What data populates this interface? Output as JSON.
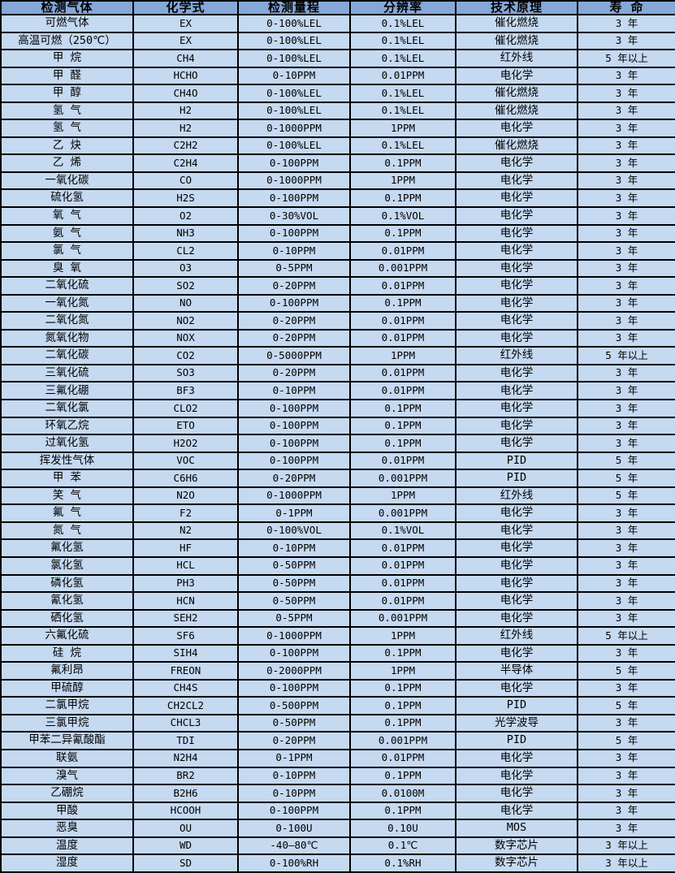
{
  "colors": {
    "header_bg": "#85a8d8",
    "row_bg": "#c5d9f1",
    "border": "#000000",
    "text": "#000000"
  },
  "table": {
    "columns": [
      "检测气体",
      "化学式",
      "检测量程",
      "分辨率",
      "技术原理",
      "寿 命"
    ],
    "rows": [
      [
        "可燃气体",
        "EX",
        "0-100%LEL",
        "0.1%LEL",
        "催化燃烧",
        "3 年"
      ],
      [
        "高温可燃（250℃）",
        "EX",
        "0-100%LEL",
        "0.1%LEL",
        "催化燃烧",
        "3 年"
      ],
      [
        "甲 烷",
        "CH4",
        "0-100%LEL",
        "0.1%LEL",
        "红外线",
        "5 年以上"
      ],
      [
        "甲 醛",
        "HCHO",
        "0-10PPM",
        "0.01PPM",
        "电化学",
        "3 年"
      ],
      [
        "甲 醇",
        "CH4O",
        "0-100%LEL",
        "0.1%LEL",
        "催化燃烧",
        "3 年"
      ],
      [
        "氢 气",
        "H2",
        "0-100%LEL",
        "0.1%LEL",
        "催化燃烧",
        "3 年"
      ],
      [
        "氢 气",
        "H2",
        "0-1000PPM",
        "1PPM",
        "电化学",
        "3 年"
      ],
      [
        "乙 炔",
        "C2H2",
        "0-100%LEL",
        "0.1%LEL",
        "催化燃烧",
        "3 年"
      ],
      [
        "乙 烯",
        "C2H4",
        "0-100PPM",
        "0.1PPM",
        "电化学",
        "3 年"
      ],
      [
        "一氧化碳",
        "CO",
        "0-1000PPM",
        "1PPM",
        "电化学",
        "3 年"
      ],
      [
        "硫化氢",
        "H2S",
        "0-100PPM",
        "0.1PPM",
        "电化学",
        "3 年"
      ],
      [
        "氧 气",
        "O2",
        "0-30%VOL",
        "0.1%VOL",
        "电化学",
        "3 年"
      ],
      [
        "氨 气",
        "NH3",
        "0-100PPM",
        "0.1PPM",
        "电化学",
        "3 年"
      ],
      [
        "氯 气",
        "CL2",
        "0-10PPM",
        "0.01PPM",
        "电化学",
        "3 年"
      ],
      [
        "臭 氧",
        "O3",
        "0-5PPM",
        "0.001PPM",
        "电化学",
        "3 年"
      ],
      [
        "二氧化硫",
        "SO2",
        "0-20PPM",
        "0.01PPM",
        "电化学",
        "3 年"
      ],
      [
        "一氧化氮",
        "NO",
        "0-100PPM",
        "0.1PPM",
        "电化学",
        "3 年"
      ],
      [
        "二氧化氮",
        "NO2",
        "0-20PPM",
        "0.01PPM",
        "电化学",
        "3 年"
      ],
      [
        "氮氧化物",
        "NOX",
        "0-20PPM",
        "0.01PPM",
        "电化学",
        "3 年"
      ],
      [
        "二氧化碳",
        "CO2",
        "0-5000PPM",
        "1PPM",
        "红外线",
        "5 年以上"
      ],
      [
        "三氧化硫",
        "SO3",
        "0-20PPM",
        "0.01PPM",
        "电化学",
        "3 年"
      ],
      [
        "三氟化硼",
        "BF3",
        "0-10PPM",
        "0.01PPM",
        "电化学",
        "3 年"
      ],
      [
        "二氧化氯",
        "CLO2",
        "0-100PPM",
        "0.1PPM",
        "电化学",
        "3 年"
      ],
      [
        "环氧乙烷",
        "ETO",
        "0-100PPM",
        "0.1PPM",
        "电化学",
        "3 年"
      ],
      [
        "过氧化氢",
        "H2O2",
        "0-100PPM",
        "0.1PPM",
        "电化学",
        "3 年"
      ],
      [
        "挥发性气体",
        "VOC",
        "0-100PPM",
        "0.01PPM",
        "PID",
        "5 年"
      ],
      [
        "甲 苯",
        "C6H6",
        "0-20PPM",
        "0.001PPM",
        "PID",
        "5 年"
      ],
      [
        "笑 气",
        "N2O",
        "0-1000PPM",
        "1PPM",
        "红外线",
        "5 年"
      ],
      [
        "氟 气",
        "F2",
        "0-1PPM",
        "0.001PPM",
        "电化学",
        "3 年"
      ],
      [
        "氮 气",
        "N2",
        "0-100%VOL",
        "0.1%VOL",
        "电化学",
        "3 年"
      ],
      [
        "氟化氢",
        "HF",
        "0-10PPM",
        "0.01PPM",
        "电化学",
        "3 年"
      ],
      [
        "氯化氢",
        "HCL",
        "0-50PPM",
        "0.01PPM",
        "电化学",
        "3 年"
      ],
      [
        "磷化氢",
        "PH3",
        "0-50PPM",
        "0.01PPM",
        "电化学",
        "3 年"
      ],
      [
        "氰化氢",
        "HCN",
        "0-50PPM",
        "0.01PPM",
        "电化学",
        "3 年"
      ],
      [
        "硒化氢",
        "SEH2",
        "0-5PPM",
        "0.001PPM",
        "电化学",
        "3 年"
      ],
      [
        "六氟化硫",
        "SF6",
        "0-1000PPM",
        "1PPM",
        "红外线",
        "5 年以上"
      ],
      [
        "硅 烷",
        "SIH4",
        "0-100PPM",
        "0.1PPM",
        "电化学",
        "3 年"
      ],
      [
        "氟利昂",
        "FREON",
        "0-2000PPM",
        "1PPM",
        "半导体",
        "5 年"
      ],
      [
        "甲硫醇",
        "CH4S",
        "0-100PPM",
        "0.1PPM",
        "电化学",
        "3 年"
      ],
      [
        "二氯甲烷",
        "CH2CL2",
        "0-500PPM",
        "0.1PPM",
        "PID",
        "5 年"
      ],
      [
        "三氯甲烷",
        "CHCL3",
        "0-50PPM",
        "0.1PPM",
        "光学波导",
        "3 年"
      ],
      [
        "甲苯二异氰酸酯",
        "TDI",
        "0-20PPM",
        "0.001PPM",
        "PID",
        "5 年"
      ],
      [
        "联氨",
        "N2H4",
        "0-1PPM",
        "0.01PPM",
        "电化学",
        "3 年"
      ],
      [
        "溴气",
        "BR2",
        "0-10PPM",
        "0.1PPM",
        "电化学",
        "3 年"
      ],
      [
        "乙硼烷",
        "B2H6",
        "0-10PPM",
        "0.0100M",
        "电化学",
        "3 年"
      ],
      [
        "甲酸",
        "HCOOH",
        "0-100PPM",
        "0.1PPM",
        "电化学",
        "3 年"
      ],
      [
        "恶臭",
        "OU",
        "0-100U",
        "0.10U",
        "MOS",
        "3 年"
      ],
      [
        "温度",
        "WD",
        "-40—80℃",
        "0.1℃",
        "数字芯片",
        "3 年以上"
      ],
      [
        "湿度",
        "SD",
        "0-100%RH",
        "0.1%RH",
        "数字芯片",
        "3 年以上"
      ]
    ]
  }
}
